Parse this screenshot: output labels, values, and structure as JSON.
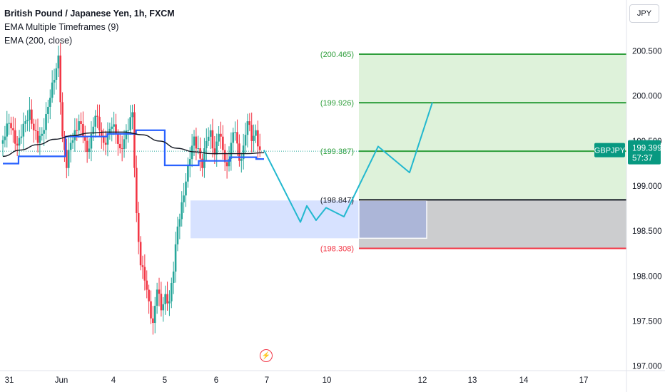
{
  "header": {
    "symbol_title": "British Pound / Japanese Yen, 1h, FXCM",
    "indicator_1": "EMA Multiple Timeframes (9)",
    "indicator_2": "EMA (200, close)",
    "currency_button": "JPY"
  },
  "colors": {
    "bull": "#26a69a",
    "bear": "#f23645",
    "ema_mtf": "#2962ff",
    "ema_200": "#131722",
    "projection": "#22b8cf",
    "target_line": "#2e9e3b",
    "target_zone": "#d8f0d4",
    "stop_line": "#f23645",
    "entry_line": "#131722",
    "stop_zone": "#c9cacc",
    "demand_zone": "#c9d8ff",
    "price_tag": "#089981"
  },
  "icons": {
    "alert": "lightning-alert-icon"
  },
  "chart_data": {
    "type": "candlestick",
    "title": "British Pound / Japanese Yen, 1h, FXCM",
    "symbol": "GBPJPY",
    "current_price": "199.399",
    "countdown": "57:37",
    "y_axis": {
      "range": [
        196.95,
        200.75
      ],
      "ticks": [
        "197.000",
        "197.500",
        "198.000",
        "198.500",
        "199.000",
        "199.500",
        "200.000",
        "200.500"
      ]
    },
    "x_axis": {
      "ticks": [
        "31",
        "Jun",
        "4",
        "5",
        "6",
        "7",
        "10",
        "12",
        "13",
        "14",
        "17"
      ]
    },
    "levels": [
      {
        "label": "(200.465)",
        "price": 200.465,
        "kind": "target"
      },
      {
        "label": "(199.926)",
        "price": 199.926,
        "kind": "target"
      },
      {
        "label": "(199.387)",
        "price": 199.387,
        "kind": "target"
      },
      {
        "label": "(198.847)",
        "price": 198.847,
        "kind": "entry"
      },
      {
        "label": "(198.308)",
        "price": 198.308,
        "kind": "stop"
      }
    ],
    "demand_zone": {
      "top": 198.84,
      "bottom": 198.42
    },
    "close_path": [
      199.47,
      199.55,
      199.7,
      199.62,
      199.45,
      199.55,
      199.72,
      199.85,
      199.62,
      199.48,
      199.58,
      199.8,
      199.98,
      200.18,
      200.45,
      199.55,
      199.2,
      199.48,
      199.62,
      199.72,
      199.55,
      199.38,
      199.58,
      199.78,
      199.62,
      199.48,
      199.58,
      199.66,
      199.58,
      199.42,
      199.52,
      199.62,
      199.82,
      198.7,
      198.12,
      197.95,
      197.72,
      197.48,
      197.85,
      197.62,
      197.8,
      197.72,
      198.05,
      198.55,
      198.82,
      199.05,
      199.3,
      199.55,
      199.42,
      199.2,
      199.5,
      199.62,
      199.35,
      199.58,
      199.4,
      199.22,
      199.48,
      199.6,
      199.28,
      199.45,
      199.72,
      199.5,
      199.62,
      199.4
    ],
    "ema_mtf_steps": [
      {
        "from": 0,
        "to": 0.06,
        "value": 199.25
      },
      {
        "from": 0.06,
        "to": 0.24,
        "value": 199.33
      },
      {
        "from": 0.24,
        "to": 0.4,
        "value": 199.55
      },
      {
        "from": 0.4,
        "to": 0.51,
        "value": 199.58
      },
      {
        "from": 0.51,
        "to": 0.62,
        "value": 199.62
      },
      {
        "from": 0.62,
        "to": 0.75,
        "value": 199.23
      },
      {
        "from": 0.75,
        "to": 0.87,
        "value": 199.28
      },
      {
        "from": 0.87,
        "to": 0.97,
        "value": 199.32
      },
      {
        "from": 0.97,
        "to": 1.0,
        "value": 199.3
      }
    ],
    "ema_200": [
      199.33,
      199.4,
      199.46,
      199.52,
      199.56,
      199.59,
      199.6,
      199.6,
      199.57,
      199.5,
      199.42,
      199.38,
      199.36,
      199.36,
      199.36,
      199.37
    ],
    "projection_path": [
      199.4,
      198.6,
      198.78,
      198.62,
      198.76,
      198.66,
      199.44,
      199.15,
      199.93
    ]
  }
}
